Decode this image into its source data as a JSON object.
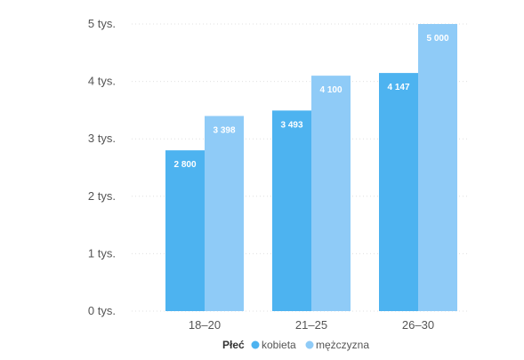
{
  "chart_data": {
    "type": "bar",
    "categories": [
      "18–20",
      "21–25",
      "26–30"
    ],
    "series": [
      {
        "name": "kobieta",
        "values": [
          2800,
          3493,
          4147
        ],
        "labels": [
          "2 800",
          "3 493",
          "4 147"
        ],
        "color": "#4db3f0"
      },
      {
        "name": "mężczyzna",
        "values": [
          3398,
          4100,
          5000
        ],
        "labels": [
          "3 398",
          "4 100",
          "5 000"
        ],
        "color": "#8fcbf7"
      }
    ],
    "yticks": [
      0,
      1000,
      2000,
      3000,
      4000,
      5000
    ],
    "ytick_labels": [
      "0 tys.",
      "1 tys.",
      "2 tys.",
      "3 tys.",
      "4 tys.",
      "5 tys."
    ],
    "ylim": [
      0,
      5000
    ],
    "legend_title": "Płeć",
    "legend_position": "bottom",
    "grid": true,
    "grid_color": "#e0e0e0"
  }
}
